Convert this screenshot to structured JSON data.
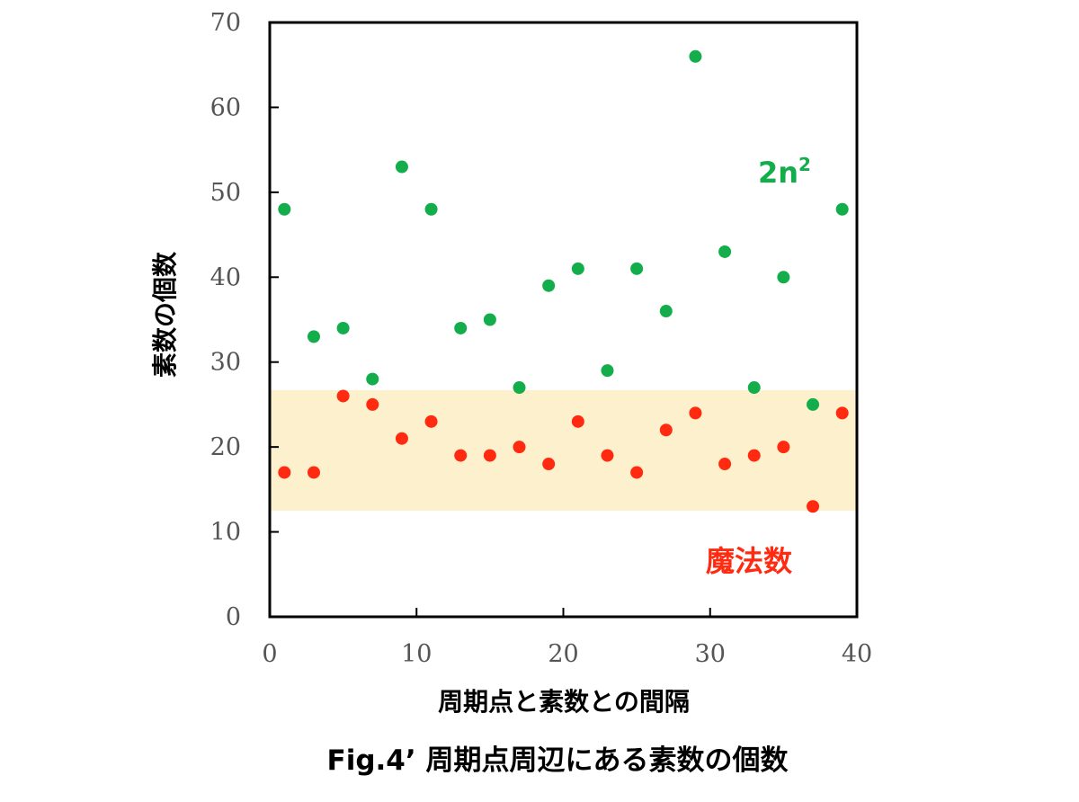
{
  "chart_data": {
    "type": "scatter",
    "title": "Fig.4’ 周期点周辺にある素数の個数",
    "xlabel": "周期点と素数との間隔",
    "ylabel": "素数の個数",
    "xlim": [
      0,
      40
    ],
    "ylim": [
      0,
      70
    ],
    "x_ticks": [
      "0",
      "10",
      "20",
      "30",
      "40"
    ],
    "y_ticks": [
      "0",
      "10",
      "20",
      "30",
      "40",
      "50",
      "60",
      "70"
    ],
    "grid": false,
    "highlight_band": {
      "y_range": [
        12.5,
        26.7
      ],
      "color": "#fdf0cd"
    },
    "series": [
      {
        "name": "2n²",
        "color": "#13ae4b",
        "x": [
          1,
          3,
          5,
          7,
          9,
          11,
          13,
          15,
          17,
          19,
          21,
          23,
          25,
          27,
          29,
          31,
          33,
          35,
          37,
          39
        ],
        "values": [
          48,
          33,
          34,
          28,
          53,
          48,
          34,
          35,
          27,
          39,
          41,
          29,
          41,
          36,
          66,
          43,
          27,
          40,
          25,
          48
        ]
      },
      {
        "name": "魔法数",
        "color": "#ff2a10",
        "x": [
          1,
          3,
          5,
          7,
          9,
          11,
          13,
          15,
          17,
          19,
          21,
          23,
          25,
          27,
          29,
          31,
          33,
          35,
          37,
          39
        ],
        "values": [
          17,
          17,
          26,
          25,
          21,
          23,
          19,
          19,
          20,
          18,
          23,
          19,
          17,
          22,
          24,
          18,
          19,
          20,
          13,
          24
        ]
      }
    ]
  }
}
